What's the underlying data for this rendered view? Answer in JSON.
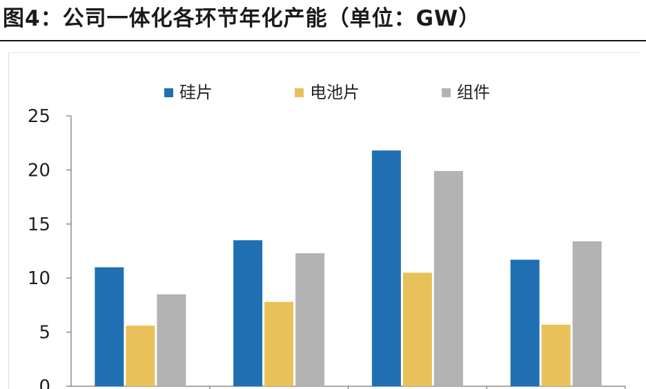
{
  "figure": {
    "title": "图4：公司一体化各环节年化产能（单位：GW）"
  },
  "chart_data": {
    "type": "bar",
    "title": "",
    "xlabel": "",
    "ylabel": "",
    "ylim": [
      0,
      25
    ],
    "yticks": [
      "0",
      "5",
      "10",
      "15",
      "20",
      "25"
    ],
    "grid": false,
    "legend_position": "top",
    "categories": [
      "",
      "",
      "",
      ""
    ],
    "series": [
      {
        "name": "硅片",
        "color": "#1f6fb2",
        "values": [
          11.0,
          13.5,
          21.8,
          11.7
        ]
      },
      {
        "name": "电池片",
        "color": "#e8c15a",
        "values": [
          5.6,
          7.8,
          10.5,
          5.7
        ]
      },
      {
        "name": "组件",
        "color": "#b3b3b3",
        "values": [
          8.5,
          12.3,
          19.9,
          13.4
        ]
      }
    ]
  }
}
